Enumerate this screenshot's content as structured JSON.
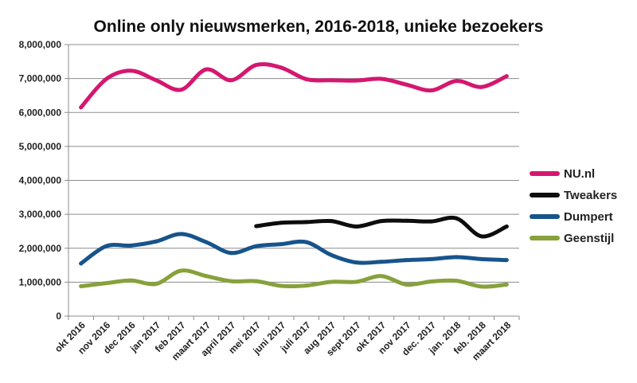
{
  "chart_data": {
    "type": "line",
    "title": "Online only nieuwsmerken, 2016-2018, unieke bezoekers",
    "xlabel": "",
    "ylabel": "",
    "ylim": [
      0,
      8000000
    ],
    "y_ticks": [
      "0",
      "1,000,000",
      "2,000,000",
      "3,000,000",
      "4,000,000",
      "5,000,000",
      "6,000,000",
      "7,000,000",
      "8,000,000"
    ],
    "y_tick_values": [
      0,
      1000000,
      2000000,
      3000000,
      4000000,
      5000000,
      6000000,
      7000000,
      8000000
    ],
    "categories": [
      "okt 2016",
      "nov 2016",
      "dec 2016",
      "jan 2017",
      "feb 2017",
      "maart 2017",
      "april 2017",
      "mei 2017",
      "juni 2017",
      "juli 2017",
      "aug 2017",
      "sept 2017",
      "okt 2017",
      "nov 2017",
      "dec. 2017",
      "jan. 2018",
      "feb. 2018",
      "maart 2018"
    ],
    "grid": true,
    "legend_position": "right",
    "series": [
      {
        "name": "NU.nl",
        "color": "#d4176f",
        "values": [
          6150000,
          6980000,
          7230000,
          6950000,
          6670000,
          7270000,
          6950000,
          7400000,
          7320000,
          6980000,
          6950000,
          6940000,
          6990000,
          6820000,
          6650000,
          6930000,
          6750000,
          7070000
        ]
      },
      {
        "name": "Tweakers",
        "color": "#0d0d0d",
        "values": [
          null,
          null,
          null,
          null,
          null,
          null,
          null,
          2650000,
          2750000,
          2770000,
          2800000,
          2640000,
          2800000,
          2810000,
          2790000,
          2880000,
          2350000,
          2640000
        ]
      },
      {
        "name": "Dumpert",
        "color": "#17548c",
        "values": [
          1550000,
          2060000,
          2080000,
          2200000,
          2420000,
          2180000,
          1860000,
          2060000,
          2120000,
          2180000,
          1800000,
          1580000,
          1600000,
          1650000,
          1680000,
          1740000,
          1680000,
          1650000
        ]
      },
      {
        "name": "Geenstijl",
        "color": "#87a13c",
        "values": [
          880000,
          970000,
          1050000,
          950000,
          1340000,
          1180000,
          1030000,
          1030000,
          890000,
          900000,
          1010000,
          1010000,
          1180000,
          930000,
          1020000,
          1040000,
          870000,
          930000
        ]
      }
    ]
  }
}
